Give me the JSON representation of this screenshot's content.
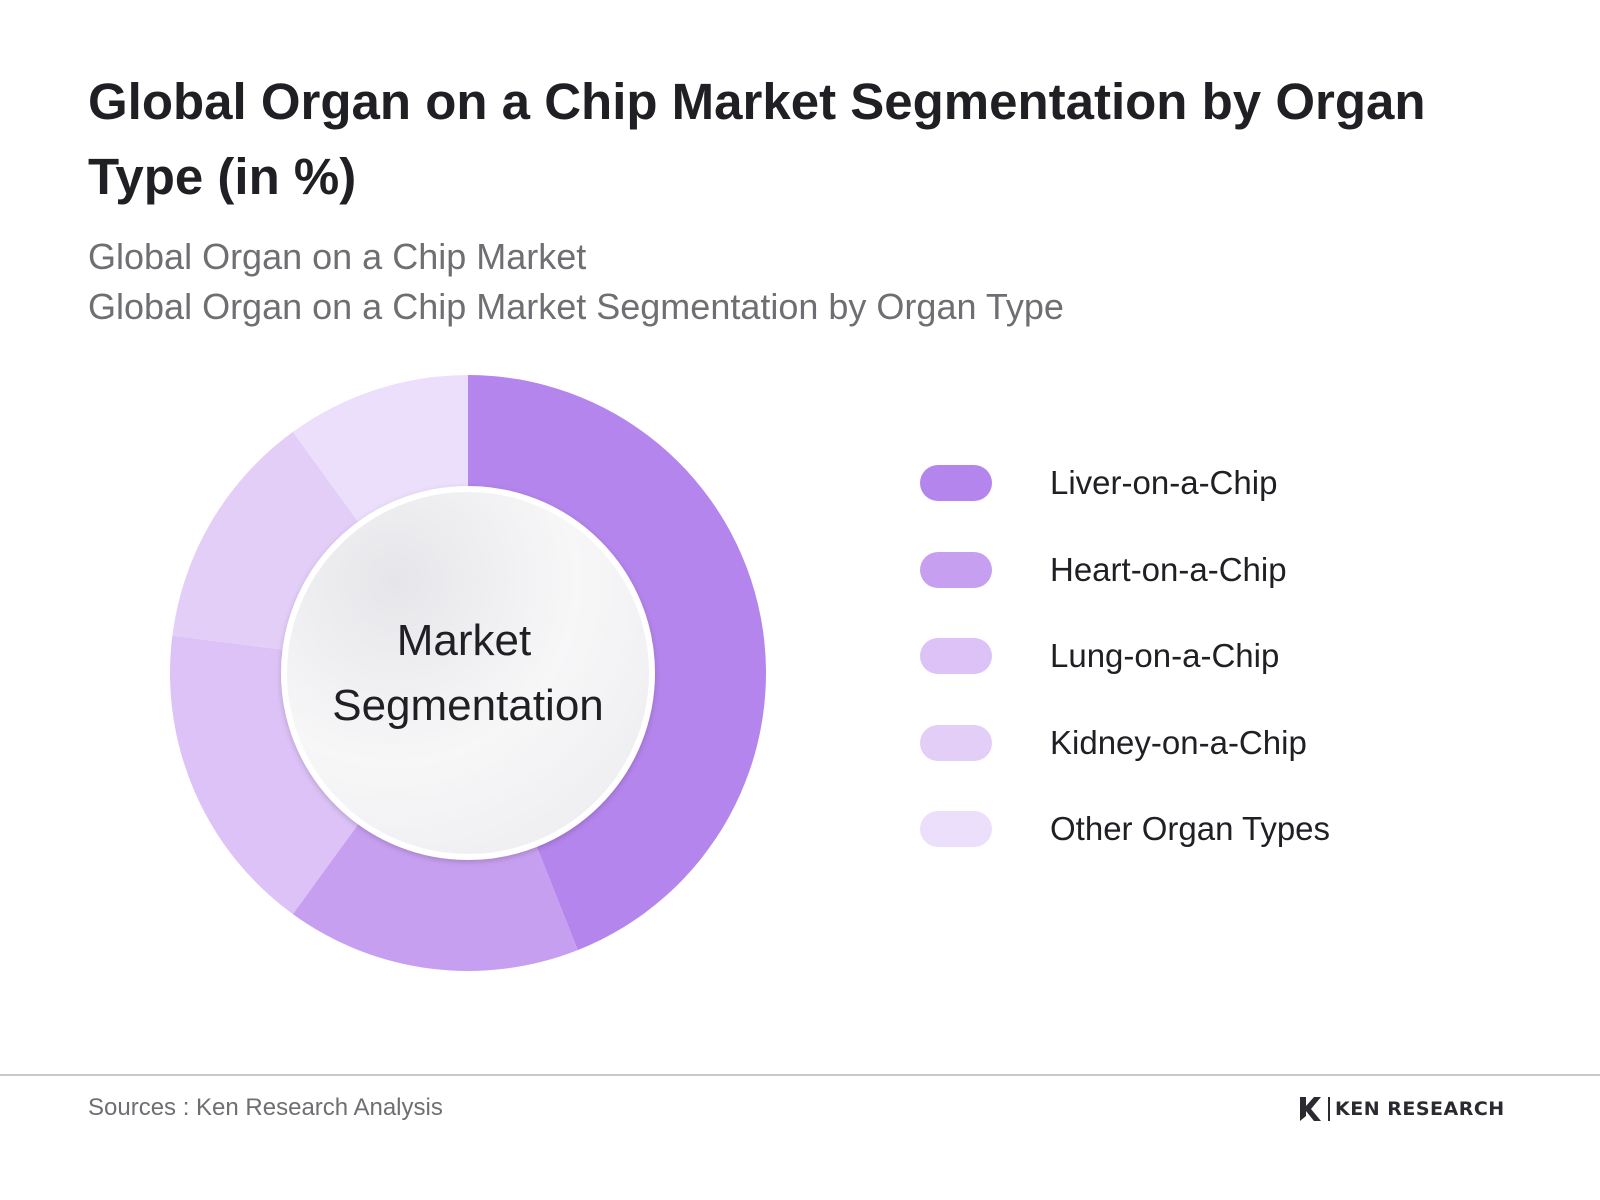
{
  "header": {
    "title": "Global Organ on a Chip Market Segmentation by Organ Type (in %)",
    "subtitle_lines": [
      "Global Organ on a Chip Market",
      "Global Organ on a Chip Market Segmentation by Organ Type"
    ]
  },
  "chart_data": {
    "type": "pie",
    "variant": "donut",
    "categories": [
      "Liver-on-a-Chip",
      "Heart-on-a-Chip",
      "Lung-on-a-Chip",
      "Kidney-on-a-Chip",
      "Other Organ Types"
    ],
    "values": [
      44,
      16,
      17,
      13,
      10
    ],
    "colors": [
      "#b485ec",
      "#c79ff0",
      "#dcc2f6",
      "#e3cef8",
      "#ecdffb"
    ],
    "center_label_lines": [
      "Market",
      "Segmentation"
    ],
    "legend_position": "right"
  },
  "footer": {
    "source": "Sources : Ken Research Analysis",
    "brand": "KEN RESEARCH",
    "brand_icon": "ken-research-logo-icon"
  }
}
